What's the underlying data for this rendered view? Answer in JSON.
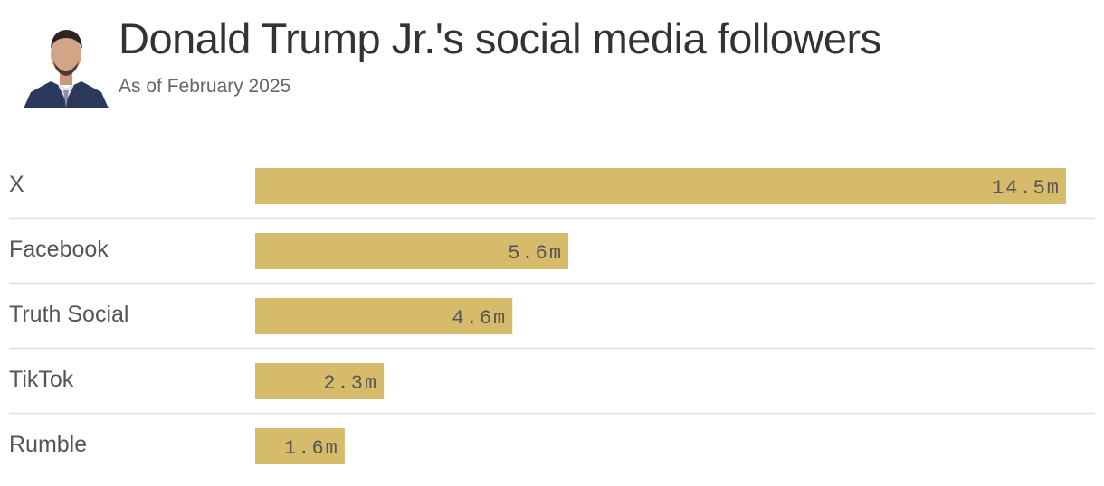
{
  "title": "Donald Trump Jr.'s social media followers",
  "subtitle": "As of February 2025",
  "colors": {
    "bar": "#d6bb6a",
    "text": "#555555",
    "divider": "#dddddd"
  },
  "chart_data": {
    "type": "bar",
    "orientation": "horizontal",
    "categories": [
      "X",
      "Facebook",
      "Truth Social",
      "TikTok",
      "Rumble"
    ],
    "values": [
      14.5,
      5.6,
      4.6,
      2.3,
      1.6
    ],
    "value_labels": [
      "14.5m",
      "5.6m",
      "4.6m",
      "2.3m",
      "1.6m"
    ],
    "unit": "m",
    "xlim": [
      0,
      14.5
    ],
    "grid": false,
    "legend": "none"
  }
}
